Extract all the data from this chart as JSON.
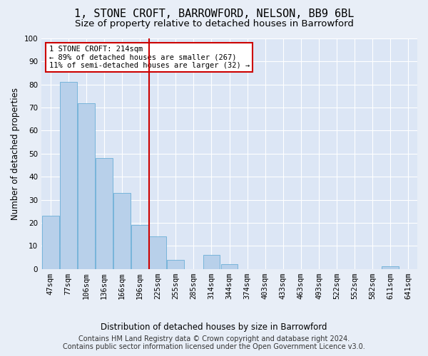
{
  "title": "1, STONE CROFT, BARROWFORD, NELSON, BB9 6BL",
  "subtitle": "Size of property relative to detached houses in Barrowford",
  "xlabel": "Distribution of detached houses by size in Barrowford",
  "ylabel": "Number of detached properties",
  "bar_labels": [
    "47sqm",
    "77sqm",
    "106sqm",
    "136sqm",
    "166sqm",
    "196sqm",
    "225sqm",
    "255sqm",
    "285sqm",
    "314sqm",
    "344sqm",
    "374sqm",
    "403sqm",
    "433sqm",
    "463sqm",
    "493sqm",
    "522sqm",
    "552sqm",
    "582sqm",
    "611sqm",
    "641sqm"
  ],
  "bar_values": [
    23,
    81,
    72,
    48,
    33,
    19,
    14,
    4,
    0,
    6,
    2,
    0,
    0,
    0,
    0,
    0,
    0,
    0,
    0,
    1,
    0
  ],
  "bar_color": "#b8d0ea",
  "bar_edge_color": "#6aaed6",
  "red_line_x": 6,
  "annotation_text": "1 STONE CROFT: 214sqm\n← 89% of detached houses are smaller (267)\n11% of semi-detached houses are larger (32) →",
  "annotation_box_color": "#ffffff",
  "annotation_box_edge": "#cc0000",
  "red_line_color": "#cc0000",
  "footer_text": "Contains HM Land Registry data © Crown copyright and database right 2024.\nContains public sector information licensed under the Open Government Licence v3.0.",
  "ylim": [
    0,
    100
  ],
  "background_color": "#e8eef7",
  "plot_bg_color": "#dce6f5",
  "grid_color": "#ffffff",
  "title_fontsize": 11,
  "subtitle_fontsize": 9.5,
  "axis_label_fontsize": 8.5,
  "tick_fontsize": 7.5,
  "footer_fontsize": 7
}
